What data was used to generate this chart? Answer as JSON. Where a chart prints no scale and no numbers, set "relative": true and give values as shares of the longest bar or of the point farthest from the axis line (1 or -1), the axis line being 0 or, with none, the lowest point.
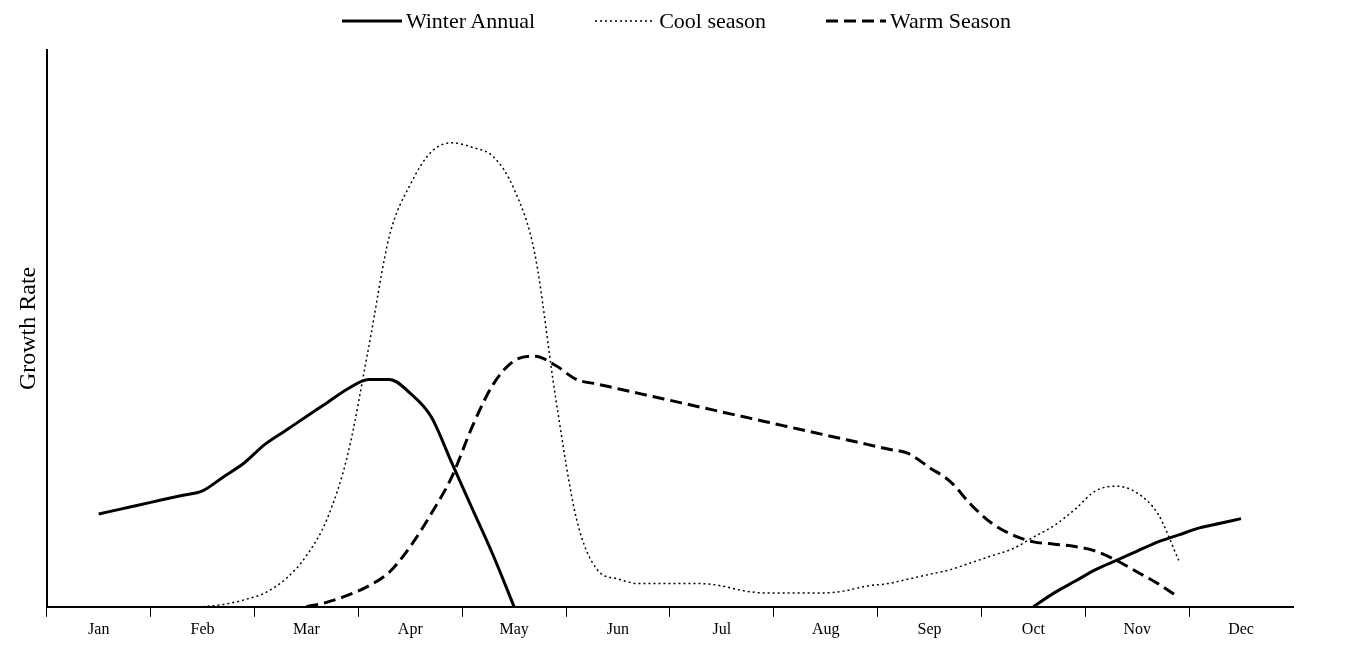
{
  "chart_data": {
    "type": "line",
    "ylabel": "Growth Rate",
    "relative": true,
    "legend": "top",
    "marker": "none",
    "grid": false,
    "categories": [
      null,
      null,
      "Jan",
      null,
      null,
      null,
      null,
      "Feb",
      null,
      null,
      null,
      null,
      "Mar",
      null,
      null,
      null,
      null,
      "Apr",
      null,
      null,
      null,
      null,
      "May",
      null,
      null,
      null,
      null,
      "Jun",
      null,
      null,
      null,
      null,
      "Jul",
      null,
      null,
      null,
      null,
      "Aug",
      null,
      null,
      null,
      null,
      "Sep",
      null,
      null,
      null,
      null,
      "Oct",
      null,
      null,
      null,
      null,
      "Nov",
      null,
      null,
      null,
      null,
      "Dec",
      null,
      null
    ],
    "series": [
      {
        "name": "Winter Annual",
        "color": "#000000",
        "line_style": "solid",
        "values": [
          null,
          null,
          0.2,
          0.21,
          0.22,
          0.23,
          0.24,
          0.25,
          0.28,
          0.31,
          0.35,
          0.38,
          0.41,
          0.44,
          0.47,
          0.49,
          0.49,
          0.46,
          0.41,
          0.31,
          0.21,
          0.11,
          0,
          null,
          null,
          null,
          null,
          null,
          null,
          null,
          null,
          null,
          null,
          null,
          null,
          null,
          null,
          null,
          null,
          null,
          null,
          null,
          null,
          null,
          null,
          null,
          null,
          0,
          0.03,
          0.055,
          0.08,
          0.1,
          0.12,
          0.14,
          0.155,
          0.17,
          0.18,
          0.19,
          null,
          null
        ]
      },
      {
        "name": "Cool season",
        "color": "#000000",
        "line_style": "dotted",
        "values": [
          null,
          null,
          null,
          null,
          null,
          null,
          null,
          0,
          0.005,
          0.015,
          0.03,
          0.06,
          0.11,
          0.19,
          0.33,
          0.56,
          0.8,
          0.91,
          0.98,
          1.0,
          0.99,
          0.97,
          0.9,
          0.76,
          0.45,
          0.19,
          0.08,
          0.06,
          0.05,
          0.05,
          0.05,
          0.05,
          0.045,
          0.035,
          0.03,
          0.03,
          0.03,
          0.03,
          0.035,
          0.045,
          0.05,
          0.06,
          0.07,
          0.08,
          0.095,
          0.11,
          0.125,
          0.15,
          0.175,
          0.21,
          0.25,
          0.26,
          0.245,
          0.2,
          0.1,
          null,
          null,
          null,
          null,
          null
        ]
      },
      {
        "name": "Warm Season",
        "color": "#000000",
        "line_style": "dashed",
        "values": [
          null,
          null,
          null,
          null,
          null,
          null,
          null,
          null,
          null,
          null,
          null,
          null,
          0,
          0.01,
          0.025,
          0.045,
          0.075,
          0.13,
          0.2,
          0.28,
          0.39,
          0.48,
          0.53,
          0.54,
          0.52,
          0.49,
          0.48,
          0.47,
          0.46,
          0.45,
          0.44,
          0.43,
          0.42,
          0.41,
          0.4,
          0.39,
          0.38,
          0.37,
          0.36,
          0.35,
          0.34,
          0.33,
          0.3,
          0.27,
          0.22,
          0.18,
          0.155,
          0.14,
          0.135,
          0.13,
          0.12,
          0.1,
          0.075,
          0.05,
          0.02,
          null,
          null,
          null,
          null,
          null
        ]
      }
    ]
  }
}
